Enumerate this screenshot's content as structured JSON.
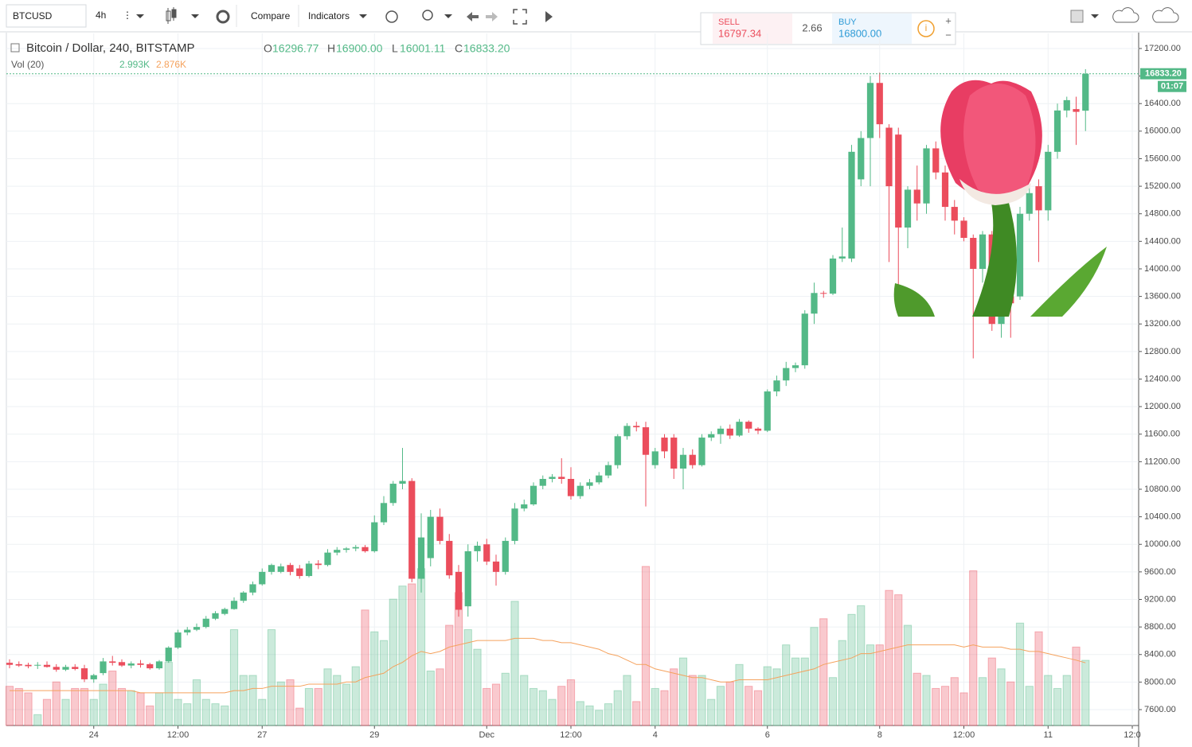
{
  "toolbar": {
    "symbol": "BTCUSD",
    "interval": "4h",
    "compare": "Compare",
    "indicators": "Indicators"
  },
  "trade": {
    "sell_label": "SELL",
    "sell_price": "16797.34",
    "spread": "2.66",
    "buy_label": "BUY",
    "buy_price": "16800.00"
  },
  "chart_data": {
    "type": "candlestick",
    "title": "Bitcoin / Dollar, 240, BITSTAMP",
    "ohlc_prefixes": [
      "O",
      "H",
      "L",
      "C"
    ],
    "ohlc_labels": [
      "16296.77",
      "16900.00",
      "16001.11",
      "16833.20"
    ],
    "volume_title": "Vol (20)",
    "volume_label": "2.993K",
    "ma_label": "2.876K",
    "current_price_label": "16833.20",
    "countdown": "01:07",
    "up_color": "#53b987",
    "down_color": "#eb4d5c",
    "ma_color": "#f5a25d",
    "grid": true,
    "xlim": [
      -0.34,
      120.68
    ],
    "xticks": [
      {
        "value": 9,
        "label": "24"
      },
      {
        "value": 18,
        "label": "12:00"
      },
      {
        "value": 27,
        "label": "27"
      },
      {
        "value": 39,
        "label": "29"
      },
      {
        "value": 51,
        "label": "Dec"
      },
      {
        "value": 60,
        "label": "12:00"
      },
      {
        "value": 69,
        "label": "4"
      },
      {
        "value": 81,
        "label": "6"
      },
      {
        "value": 93,
        "label": "8"
      },
      {
        "value": 102,
        "label": "12:00"
      },
      {
        "value": 111,
        "label": "11"
      },
      {
        "value": 120,
        "label": "12:0"
      }
    ],
    "ylim": [
      7369,
      17419
    ],
    "yticks": [
      {
        "value": 7600,
        "label": "7600.00"
      },
      {
        "value": 8000,
        "label": "8000.00"
      },
      {
        "value": 8400,
        "label": "8400.00"
      },
      {
        "value": 8800,
        "label": "8800.00"
      },
      {
        "value": 9200,
        "label": "9200.00"
      },
      {
        "value": 9600,
        "label": "9600.00"
      },
      {
        "value": 10000,
        "label": "10000.00"
      },
      {
        "value": 10400,
        "label": "10400.00"
      },
      {
        "value": 10800,
        "label": "10800.00"
      },
      {
        "value": 11200,
        "label": "11200.00"
      },
      {
        "value": 11600,
        "label": "11600.00"
      },
      {
        "value": 12000,
        "label": "12000.00"
      },
      {
        "value": 12400,
        "label": "12400.00"
      },
      {
        "value": 12800,
        "label": "12800.00"
      },
      {
        "value": 13200,
        "label": "13200.00"
      },
      {
        "value": 13600,
        "label": "13600.00"
      },
      {
        "value": 14000,
        "label": "14000.00"
      },
      {
        "value": 14400,
        "label": "14400.00"
      },
      {
        "value": 14800,
        "label": "14800.00"
      },
      {
        "value": 15200,
        "label": "15200.00"
      },
      {
        "value": 15600,
        "label": "15600.00"
      },
      {
        "value": 16000,
        "label": "16000.00"
      },
      {
        "value": 16400,
        "label": "16400.00"
      },
      {
        "value": 16800,
        "label": "16800.00"
      },
      {
        "value": 17200,
        "label": "17200.00"
      }
    ],
    "volume_lim": [
      0,
      7.3
    ],
    "open": [
      8280,
      8260,
      8250,
      8240,
      8250,
      8220,
      8180,
      8220,
      8200,
      8040,
      8130,
      8300,
      8290,
      8240,
      8270,
      8260,
      8200,
      8300,
      8500,
      8720,
      8760,
      8800,
      8920,
      8990,
      9060,
      9180,
      9300,
      9420,
      9600,
      9600,
      9700,
      9650,
      9540,
      9720,
      9700,
      9880,
      9920,
      9940,
      9960,
      9900,
      10320,
      10600,
      10880,
      10920,
      9500,
      9800,
      10400,
      10050,
      9600,
      9100,
      9900,
      10000,
      9750,
      9600,
      10050,
      10520,
      10580,
      10850,
      10950,
      10980,
      10950,
      10700,
      10850,
      10900,
      11000,
      11150,
      11570,
      11720,
      11700,
      11150,
      11550,
      11550,
      11100,
      11300,
      11150,
      11550,
      11600,
      11680,
      11580,
      11780,
      11680,
      11650,
      12220,
      12380,
      12560,
      12600,
      13350,
      13650,
      13640,
      14150,
      14150,
      15300,
      15900,
      16700,
      16050,
      15950,
      14600,
      15150,
      14950,
      15750,
      15400,
      14900,
      14700,
      14450,
      14000,
      14500,
      13200,
      13600,
      13600,
      14800,
      15200,
      14850,
      15700,
      16300,
      16320,
      16296.77
    ],
    "high": [
      8330,
      8300,
      8280,
      8290,
      8300,
      8260,
      8250,
      8260,
      8250,
      8120,
      8350,
      8380,
      8330,
      8300,
      8320,
      8280,
      8320,
      8520,
      8760,
      8800,
      8850,
      8960,
      9030,
      9080,
      9230,
      9320,
      9460,
      9650,
      9720,
      9720,
      9730,
      9700,
      9760,
      9770,
      9930,
      9960,
      9960,
      9990,
      9990,
      10420,
      10700,
      10920,
      11400,
      10960,
      10450,
      10500,
      10520,
      10150,
      9700,
      10000,
      10040,
      10080,
      9850,
      10100,
      10600,
      10650,
      10900,
      11000,
      11020,
      11250,
      11120,
      10900,
      10950,
      11050,
      11200,
      11600,
      11760,
      11780,
      11780,
      11400,
      11600,
      11600,
      11400,
      11380,
      11600,
      11640,
      11720,
      11740,
      11820,
      11800,
      11700,
      12250,
      12450,
      12650,
      12640,
      13400,
      13800,
      13680,
      14200,
      14600,
      15800,
      16000,
      16800,
      16850,
      16100,
      16050,
      15200,
      15500,
      15800,
      15850,
      15500,
      15000,
      14750,
      14500,
      14550,
      14550,
      13700,
      13800,
      14900,
      15200,
      15300,
      15800,
      16400,
      16500,
      16500,
      16900
    ],
    "low": [
      8200,
      8220,
      8200,
      8190,
      8210,
      8150,
      8160,
      8170,
      8000,
      7990,
      8100,
      8240,
      8220,
      8200,
      8210,
      8180,
      8180,
      8280,
      8480,
      8680,
      8740,
      8780,
      8900,
      8970,
      9050,
      9150,
      9260,
      9400,
      9560,
      9580,
      9550,
      9500,
      9520,
      9640,
      9680,
      9840,
      9880,
      9900,
      9880,
      9880,
      10280,
      10560,
      10800,
      9450,
      9300,
      9680,
      10000,
      9500,
      8950,
      8950,
      9750,
      9700,
      9400,
      9560,
      10000,
      10480,
      10560,
      10800,
      10900,
      10880,
      10650,
      10660,
      10800,
      10870,
      10960,
      11100,
      11520,
      11640,
      10550,
      11100,
      11250,
      10950,
      10800,
      11100,
      11130,
      11500,
      11460,
      11530,
      11560,
      11620,
      11600,
      11630,
      12150,
      12300,
      12500,
      12550,
      13200,
      13580,
      13620,
      14100,
      14100,
      15200,
      15200,
      15900,
      14100,
      13750,
      14300,
      14700,
      14800,
      15300,
      14700,
      14500,
      14400,
      12700,
      13800,
      13100,
      13000,
      13000,
      13550,
      14700,
      14100,
      14700,
      15600,
      16200,
      15800,
      16001.11
    ],
    "close": [
      8250,
      8240,
      8230,
      8250,
      8220,
      8180,
      8220,
      8190,
      8040,
      8100,
      8300,
      8280,
      8240,
      8270,
      8250,
      8200,
      8300,
      8500,
      8720,
      8760,
      8800,
      8920,
      9000,
      9060,
      9180,
      9300,
      9420,
      9600,
      9700,
      9680,
      9600,
      9540,
      9720,
      9700,
      9880,
      9920,
      9940,
      9960,
      9900,
      10320,
      10600,
      10880,
      10920,
      9500,
      10100,
      10400,
      10050,
      9550,
      9050,
      9900,
      9980,
      9750,
      9600,
      10050,
      10520,
      10580,
      10850,
      10950,
      10980,
      10950,
      10700,
      10850,
      10900,
      11000,
      11150,
      11570,
      11720,
      11700,
      11300,
      11350,
      11350,
      11100,
      11300,
      11150,
      11550,
      11600,
      11680,
      11580,
      11780,
      11680,
      11650,
      12220,
      12380,
      12560,
      12600,
      13350,
      13650,
      13640,
      14150,
      14180,
      15700,
      15900,
      16700,
      16100,
      15200,
      14600,
      15150,
      14950,
      15750,
      15400,
      14900,
      14700,
      14450,
      14000,
      14500,
      13200,
      13600,
      13500,
      14800,
      15100,
      14850,
      15700,
      16300,
      16450,
      16280,
      16833.2
    ],
    "volume": [
      1.8,
      1.7,
      1.5,
      0.5,
      1.2,
      2.0,
      1.2,
      1.7,
      1.7,
      1.2,
      1.9,
      2.5,
      1.7,
      1.6,
      1.5,
      0.9,
      1.5,
      2.9,
      1.2,
      1.0,
      2.1,
      1.2,
      1.0,
      0.9,
      4.4,
      2.3,
      2.3,
      1.2,
      4.4,
      2.0,
      2.1,
      0.8,
      1.7,
      1.7,
      2.6,
      2.3,
      1.9,
      2.7,
      5.3,
      4.3,
      3.9,
      5.8,
      6.4,
      6.5,
      7.2,
      2.5,
      2.6,
      4.6,
      6.1,
      4.4,
      3.5,
      1.7,
      1.9,
      2.4,
      5.7,
      2.3,
      1.7,
      1.6,
      1.2,
      1.8,
      2.1,
      1.1,
      0.9,
      0.7,
      1.0,
      1.6,
      2.3,
      1.1,
      7.3,
      1.7,
      1.6,
      2.6,
      3.1,
      2.3,
      2.3,
      1.2,
      1.8,
      2.0,
      2.8,
      1.8,
      1.6,
      2.7,
      2.6,
      3.7,
      3.1,
      3.1,
      4.5,
      4.9,
      2.2,
      3.9,
      5.1,
      5.5,
      3.7,
      3.7,
      6.2,
      6.0,
      4.6,
      2.4,
      2.3,
      1.7,
      1.8,
      2.2,
      1.5,
      7.1,
      2.2,
      3.1,
      2.6,
      2.0,
      4.7,
      1.8,
      4.3,
      2.3,
      1.7,
      2.3,
      3.6,
      2.993
    ],
    "volume_ma": [
      1.6,
      1.6,
      1.6,
      1.6,
      1.6,
      1.6,
      1.6,
      1.6,
      1.6,
      1.6,
      1.6,
      1.6,
      1.6,
      1.6,
      1.5,
      1.5,
      1.5,
      1.5,
      1.5,
      1.5,
      1.5,
      1.5,
      1.5,
      1.5,
      1.6,
      1.6,
      1.7,
      1.7,
      1.8,
      1.8,
      1.8,
      1.8,
      1.9,
      1.9,
      1.9,
      1.9,
      2.0,
      2.0,
      2.2,
      2.3,
      2.4,
      2.7,
      2.9,
      3.2,
      3.4,
      3.3,
      3.4,
      3.6,
      3.7,
      3.8,
      3.9,
      3.9,
      3.9,
      3.9,
      4.0,
      4.0,
      4.0,
      3.9,
      3.9,
      3.8,
      3.8,
      3.7,
      3.6,
      3.5,
      3.3,
      3.2,
      3.0,
      2.8,
      2.8,
      2.6,
      2.5,
      2.4,
      2.3,
      2.2,
      2.2,
      2.1,
      2.0,
      2.0,
      2.1,
      2.1,
      2.1,
      2.1,
      2.2,
      2.3,
      2.4,
      2.5,
      2.6,
      2.8,
      2.9,
      3.0,
      3.1,
      3.3,
      3.3,
      3.4,
      3.5,
      3.6,
      3.7,
      3.7,
      3.7,
      3.7,
      3.7,
      3.7,
      3.6,
      3.7,
      3.6,
      3.6,
      3.6,
      3.5,
      3.5,
      3.4,
      3.4,
      3.3,
      3.2,
      3.1,
      3.0,
      2.876
    ]
  }
}
